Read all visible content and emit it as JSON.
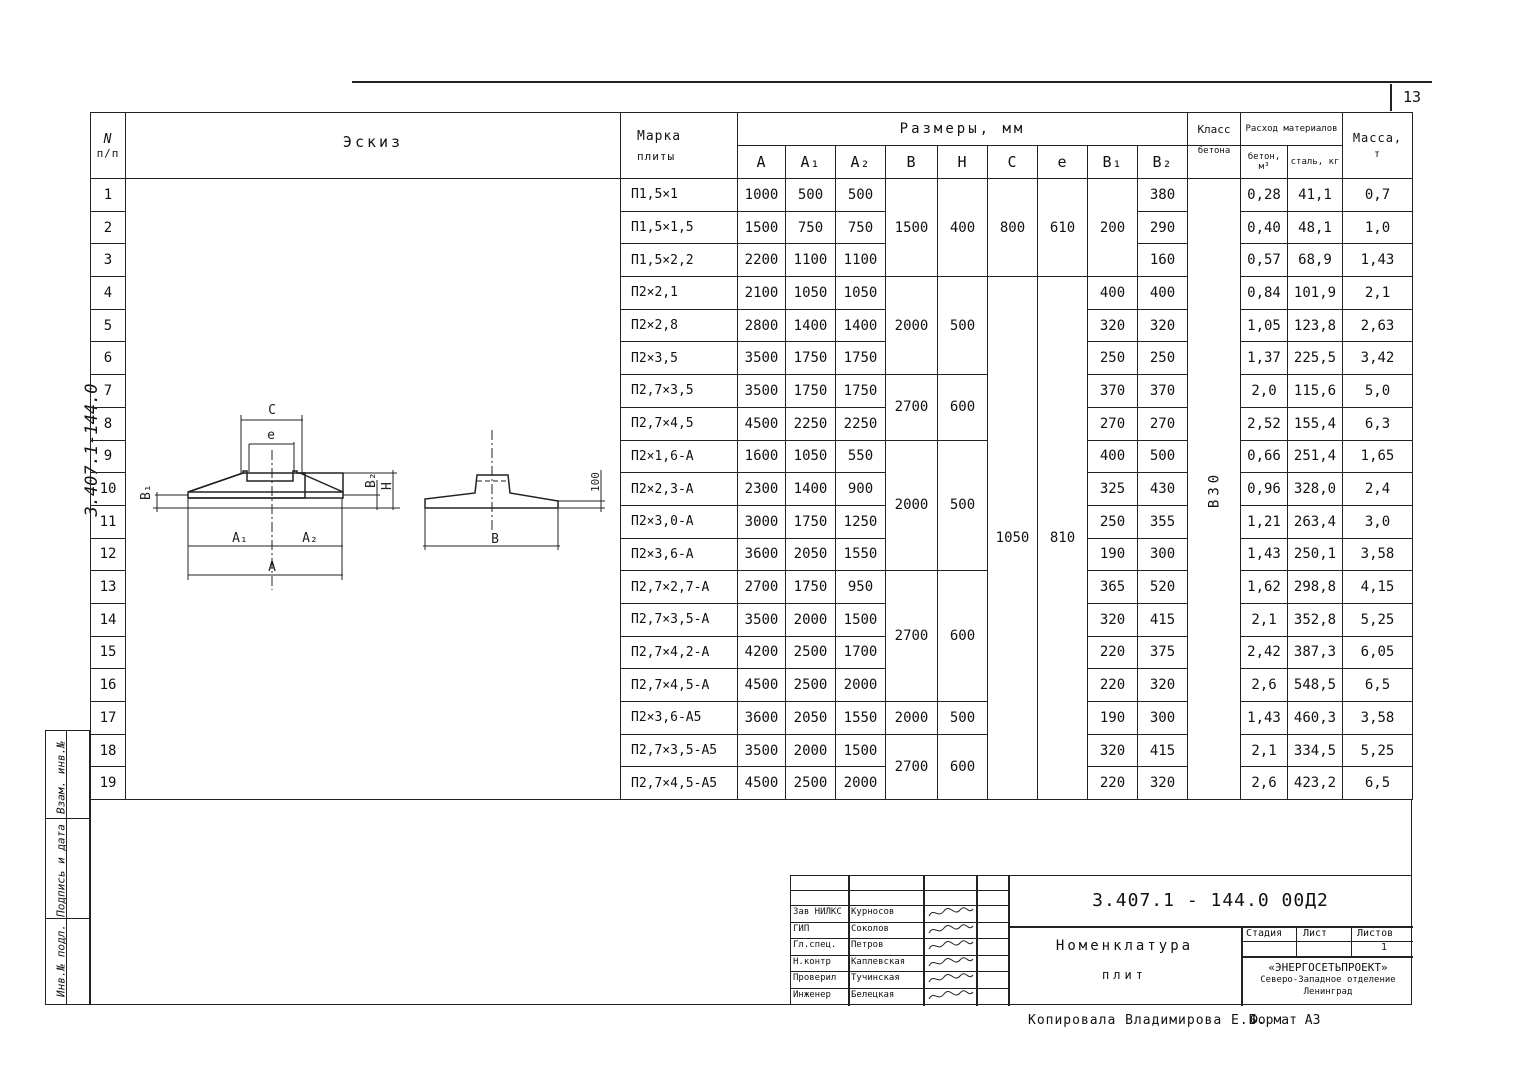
{
  "page_number": "13",
  "side_code": "3.407.1-144.0",
  "header": {
    "num": "N",
    "num_sub": "п/п",
    "sketch": "Эскиз",
    "marka": "Марка",
    "marka_sub": "плиты",
    "sizes": "Размеры, мм",
    "cols": [
      "A",
      "A₁",
      "A₂",
      "B",
      "H",
      "C",
      "e",
      "B₁",
      "B₂"
    ],
    "class": "Класс",
    "class_sub": "бетона",
    "consumption": "Расход материалов",
    "concrete": "бетон, м³",
    "steel": "сталь, кг",
    "mass": "Масса,",
    "mass_unit": "т"
  },
  "concrete_class": "B30",
  "rows": [
    {
      "n": "1",
      "marka": "П1,5×1",
      "A": "1000",
      "A1": "500",
      "A2": "500",
      "B1": "",
      "B2": "380",
      "beton": "0,28",
      "stal": "41,1",
      "mass": "0,7"
    },
    {
      "n": "2",
      "marka": "П1,5×1,5",
      "A": "1500",
      "A1": "750",
      "A2": "750",
      "B1": "",
      "B2": "290",
      "beton": "0,40",
      "stal": "48,1",
      "mass": "1,0"
    },
    {
      "n": "3",
      "marka": "П1,5×2,2",
      "A": "2200",
      "A1": "1100",
      "A2": "1100",
      "B1": "",
      "B2": "160",
      "beton": "0,57",
      "stal": "68,9",
      "mass": "1,43"
    },
    {
      "n": "4",
      "marka": "П2×2,1",
      "A": "2100",
      "A1": "1050",
      "A2": "1050",
      "B1": "400",
      "B2": "400",
      "beton": "0,84",
      "stal": "101,9",
      "mass": "2,1"
    },
    {
      "n": "5",
      "marka": "П2×2,8",
      "A": "2800",
      "A1": "1400",
      "A2": "1400",
      "B1": "320",
      "B2": "320",
      "beton": "1,05",
      "stal": "123,8",
      "mass": "2,63"
    },
    {
      "n": "6",
      "marka": "П2×3,5",
      "A": "3500",
      "A1": "1750",
      "A2": "1750",
      "B1": "250",
      "B2": "250",
      "beton": "1,37",
      "stal": "225,5",
      "mass": "3,42"
    },
    {
      "n": "7",
      "marka": "П2,7×3,5",
      "A": "3500",
      "A1": "1750",
      "A2": "1750",
      "B1": "370",
      "B2": "370",
      "beton": "2,0",
      "stal": "115,6",
      "mass": "5,0"
    },
    {
      "n": "8",
      "marka": "П2,7×4,5",
      "A": "4500",
      "A1": "2250",
      "A2": "2250",
      "B1": "270",
      "B2": "270",
      "beton": "2,52",
      "stal": "155,4",
      "mass": "6,3"
    },
    {
      "n": "9",
      "marka": "П2×1,6-А",
      "A": "1600",
      "A1": "1050",
      "A2": "550",
      "B1": "400",
      "B2": "500",
      "beton": "0,66",
      "stal": "251,4",
      "mass": "1,65"
    },
    {
      "n": "10",
      "marka": "П2×2,3-А",
      "A": "2300",
      "A1": "1400",
      "A2": "900",
      "B1": "325",
      "B2": "430",
      "beton": "0,96",
      "stal": "328,0",
      "mass": "2,4"
    },
    {
      "n": "11",
      "marka": "П2×3,0-А",
      "A": "3000",
      "A1": "1750",
      "A2": "1250",
      "B1": "250",
      "B2": "355",
      "beton": "1,21",
      "stal": "263,4",
      "mass": "3,0"
    },
    {
      "n": "12",
      "marka": "П2×3,6-А",
      "A": "3600",
      "A1": "2050",
      "A2": "1550",
      "B1": "190",
      "B2": "300",
      "beton": "1,43",
      "stal": "250,1",
      "mass": "3,58"
    },
    {
      "n": "13",
      "marka": "П2,7×2,7-А",
      "A": "2700",
      "A1": "1750",
      "A2": "950",
      "B1": "365",
      "B2": "520",
      "beton": "1,62",
      "stal": "298,8",
      "mass": "4,15"
    },
    {
      "n": "14",
      "marka": "П2,7×3,5-А",
      "A": "3500",
      "A1": "2000",
      "A2": "1500",
      "B1": "320",
      "B2": "415",
      "beton": "2,1",
      "stal": "352,8",
      "mass": "5,25"
    },
    {
      "n": "15",
      "marka": "П2,7×4,2-А",
      "A": "4200",
      "A1": "2500",
      "A2": "1700",
      "B1": "220",
      "B2": "375",
      "beton": "2,42",
      "stal": "387,3",
      "mass": "6,05"
    },
    {
      "n": "16",
      "marka": "П2,7×4,5-А",
      "A": "4500",
      "A1": "2500",
      "A2": "2000",
      "B1": "220",
      "B2": "320",
      "beton": "2,6",
      "stal": "548,5",
      "mass": "6,5"
    },
    {
      "n": "17",
      "marka": "П2×3,6-А5",
      "A": "3600",
      "A1": "2050",
      "A2": "1550",
      "B1": "190",
      "B2": "300",
      "beton": "1,43",
      "stal": "460,3",
      "mass": "3,58"
    },
    {
      "n": "18",
      "marka": "П2,7×3,5-А5",
      "A": "3500",
      "A1": "2000",
      "A2": "1500",
      "B1": "320",
      "B2": "415",
      "beton": "2,1",
      "stal": "334,5",
      "mass": "5,25"
    },
    {
      "n": "19",
      "marka": "П2,7×4,5-А5",
      "A": "4500",
      "A1": "2500",
      "A2": "2000",
      "B1": "220",
      "B2": "320",
      "beton": "2,6",
      "stal": "423,2",
      "mass": "6,5"
    }
  ],
  "groups": {
    "BH": [
      {
        "start": 1,
        "span": 3,
        "B": "1500",
        "H": "400"
      },
      {
        "start": 4,
        "span": 3,
        "B": "2000",
        "H": "500"
      },
      {
        "start": 7,
        "span": 2,
        "B": "2700",
        "H": "600"
      },
      {
        "start": 9,
        "span": 4,
        "B": "2000",
        "H": "500"
      },
      {
        "start": 13,
        "span": 4,
        "B": "2700",
        "H": "600"
      },
      {
        "start": 17,
        "span": 1,
        "B": "2000",
        "H": "500"
      },
      {
        "start": 18,
        "span": 2,
        "B": "2700",
        "H": "600"
      }
    ],
    "Ce": [
      {
        "start": 1,
        "span": 3,
        "C": "800",
        "e": "610"
      },
      {
        "start": 4,
        "span": 16,
        "C": "1050",
        "e": "810"
      }
    ],
    "B1_first": {
      "start": 1,
      "span": 3,
      "B1": "200"
    }
  },
  "sketch_labels": {
    "C": "C",
    "e": "e",
    "B1": "B₁",
    "B2": "B₂",
    "H": "H",
    "A1": "A₁",
    "A2": "A₂",
    "A": "A",
    "B": "B",
    "d100": "100"
  },
  "stamp": [
    "Взам. инв.№",
    "Подпись и дата",
    "Инв.№ подл."
  ],
  "title_block": {
    "code": "3.407.1 - 144.0   00Д2",
    "roles": [
      "Зав НИЛКС",
      "ГИП",
      "Гл.спец.",
      "Н.контр",
      "Проверил",
      "Инженер"
    ],
    "names": [
      "Курносов",
      "Соколов",
      "Петров",
      "Каплевская",
      "Тучинская",
      "Белецкая"
    ],
    "title_line1": "Номенклатура",
    "title_line2": "плит",
    "stage_label": "Стадия",
    "sheet_label": "Лист",
    "sheets_label": "Листов",
    "sheets_value": "1",
    "org_name": "«ЭНЕРГОСЕТЬПРОЕКТ»",
    "org_branch": "Северо-Западное отделение",
    "org_city": "Ленинград"
  },
  "footer": {
    "copied": "Копировала  Владимирова Е.Б.",
    "format": "Формат А3"
  }
}
